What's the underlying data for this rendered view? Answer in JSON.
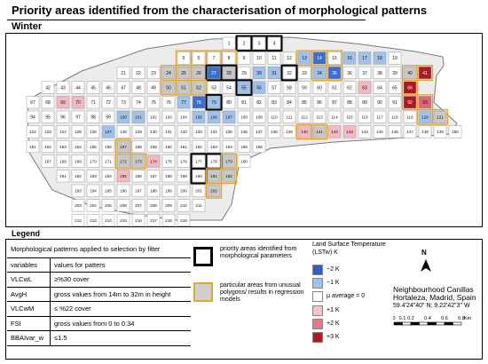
{
  "title": "Priority areas identified from the characterisation of morphological patterns",
  "season": "Winter",
  "map": {
    "colors": {
      "minus2": "#3a6fd0",
      "minus1": "#9ec2ec",
      "avg": "#ffffff",
      "plus1": "#f4b8c0",
      "plus2": "#df6574",
      "plus3": "#b0171f",
      "nodata": "#c8c8c8",
      "block": "#d8d8d8"
    }
  },
  "legend": {
    "title": "Legend",
    "criteria_heading": "Morphological patterns applied to selection by filter",
    "col_variables": "variables",
    "col_values": "values for patters",
    "rows": [
      {
        "var": "VLCwL",
        "val": "≥%30 cover"
      },
      {
        "var": "AvgH",
        "val": "gross values from 14m to 32m in height"
      },
      {
        "var": "VLCwM",
        "val": "≤ %22 cover"
      },
      {
        "var": "FSI",
        "val": "gross values from 0 to 0.34"
      },
      {
        "var": "BBAIvar_w",
        "val": "≤1.5"
      }
    ],
    "priority_label": "priority areas identified from morphological parameters",
    "particular_label": "particular areas from unusual polygons/ results in regression models",
    "lst_title": "Land Surface Temperature (LSTw) K",
    "lst_items": [
      {
        "label": "−2 K",
        "color": "#2f5fc4"
      },
      {
        "label": "−1 K",
        "color": "#9ec2ec"
      },
      {
        "label": "μ average = 0",
        "color": "#ffffff"
      },
      {
        "label": "+1 K",
        "color": "#f4c4ca"
      },
      {
        "label": "+2 K",
        "color": "#e07a86"
      },
      {
        "label": "+3 K",
        "color": "#b0171f"
      }
    ],
    "north": "N",
    "neighbourhood": "Neighbourhood Canillas",
    "location": "Hortaleza, Madrid, Spain",
    "coords": "59.4'24\"40\" N; 9.22'42\"3\" W",
    "scale_ticks": [
      "0",
      "0.1",
      "0.2",
      "",
      "0.4",
      "",
      "0.6",
      "",
      "0.8"
    ],
    "scale_unit": "Km"
  },
  "cells": [
    {
      "id": "1",
      "r": 0,
      "c": 14,
      "v": "w"
    },
    {
      "id": "2",
      "r": 0,
      "c": 15,
      "v": "w",
      "p": 1
    },
    {
      "id": "3",
      "r": 0,
      "c": 16,
      "v": "w",
      "p": 1
    },
    {
      "id": "4",
      "r": 0,
      "c": 17,
      "v": "w",
      "p": 1
    },
    {
      "id": "5",
      "r": 1,
      "c": 11,
      "v": "w",
      "q": 1
    },
    {
      "id": "6",
      "r": 1,
      "c": 12,
      "v": "w",
      "q": 1
    },
    {
      "id": "7",
      "r": 1,
      "c": 13,
      "v": "w",
      "q": 1
    },
    {
      "id": "8",
      "r": 1,
      "c": 14,
      "v": "w",
      "q": 1
    },
    {
      "id": "9",
      "r": 1,
      "c": 15,
      "v": "w"
    },
    {
      "id": "10",
      "r": 1,
      "c": 16,
      "v": "w"
    },
    {
      "id": "11",
      "r": 1,
      "c": 17,
      "v": "w"
    },
    {
      "id": "12",
      "r": 1,
      "c": 18,
      "v": "w"
    },
    {
      "id": "13",
      "r": 1,
      "c": 19,
      "v": "m1",
      "q": 1
    },
    {
      "id": "14",
      "r": 1,
      "c": 20,
      "v": "m2",
      "q": 1
    },
    {
      "id": "15",
      "r": 1,
      "c": 21,
      "v": "w",
      "q": 1
    },
    {
      "id": "16",
      "r": 1,
      "c": 22,
      "v": "m1"
    },
    {
      "id": "17",
      "r": 1,
      "c": 23,
      "v": "m1"
    },
    {
      "id": "18",
      "r": 1,
      "c": 24,
      "v": "m1"
    },
    {
      "id": "19",
      "r": 1,
      "c": 25,
      "v": "w"
    },
    {
      "id": "21",
      "r": 2,
      "c": 7,
      "v": "w"
    },
    {
      "id": "22",
      "r": 2,
      "c": 8,
      "v": "w"
    },
    {
      "id": "23",
      "r": 2,
      "c": 9,
      "v": "w"
    },
    {
      "id": "24",
      "r": 2,
      "c": 10,
      "v": "nd",
      "q": 1
    },
    {
      "id": "25",
      "r": 2,
      "c": 11,
      "v": "nd",
      "q": 1
    },
    {
      "id": "26",
      "r": 2,
      "c": 12,
      "v": "nd",
      "q": 1
    },
    {
      "id": "27",
      "r": 2,
      "c": 13,
      "v": "m2",
      "p": 1
    },
    {
      "id": "28",
      "r": 2,
      "c": 14,
      "v": "nd",
      "p": 1
    },
    {
      "id": "29",
      "r": 2,
      "c": 15,
      "v": "w"
    },
    {
      "id": "30",
      "r": 2,
      "c": 16,
      "v": "m1"
    },
    {
      "id": "31",
      "r": 2,
      "c": 17,
      "v": "m1"
    },
    {
      "id": "32",
      "r": 2,
      "c": 18,
      "v": "w",
      "p": 1
    },
    {
      "id": "33",
      "r": 2,
      "c": 19,
      "v": "w"
    },
    {
      "id": "34",
      "r": 2,
      "c": 20,
      "v": "m1",
      "q": 1
    },
    {
      "id": "35",
      "r": 2,
      "c": 21,
      "v": "m2",
      "q": 1
    },
    {
      "id": "36",
      "r": 2,
      "c": 22,
      "v": "w"
    },
    {
      "id": "37",
      "r": 2,
      "c": 23,
      "v": "w"
    },
    {
      "id": "38",
      "r": 2,
      "c": 24,
      "v": "w"
    },
    {
      "id": "39",
      "r": 2,
      "c": 25,
      "v": "w"
    },
    {
      "id": "40",
      "r": 2,
      "c": 26,
      "v": "nd",
      "q": 1
    },
    {
      "id": "41",
      "r": 2,
      "c": 27,
      "v": "p3",
      "q": 1
    },
    {
      "id": "42",
      "r": 3,
      "c": 2,
      "v": "w"
    },
    {
      "id": "43",
      "r": 3,
      "c": 3,
      "v": "w"
    },
    {
      "id": "44",
      "r": 3,
      "c": 4,
      "v": "w"
    },
    {
      "id": "45",
      "r": 3,
      "c": 5,
      "v": "w"
    },
    {
      "id": "46",
      "r": 3,
      "c": 6,
      "v": "w"
    },
    {
      "id": "47",
      "r": 3,
      "c": 7,
      "v": "w"
    },
    {
      "id": "48",
      "r": 3,
      "c": 8,
      "v": "w"
    },
    {
      "id": "49",
      "r": 3,
      "c": 9,
      "v": "w"
    },
    {
      "id": "50",
      "r": 3,
      "c": 10,
      "v": "nd",
      "q": 1
    },
    {
      "id": "51",
      "r": 3,
      "c": 11,
      "v": "nd",
      "q": 1
    },
    {
      "id": "52",
      "r": 3,
      "c": 12,
      "v": "nd",
      "q": 1
    },
    {
      "id": "53",
      "r": 3,
      "c": 13,
      "v": "w"
    },
    {
      "id": "54",
      "r": 3,
      "c": 14,
      "v": "w"
    },
    {
      "id": "55",
      "r": 3,
      "c": 15,
      "v": "m1",
      "p": 1
    },
    {
      "id": "56",
      "r": 3,
      "c": 16,
      "v": "m1"
    },
    {
      "id": "57",
      "r": 3,
      "c": 17,
      "v": "w"
    },
    {
      "id": "58",
      "r": 3,
      "c": 18,
      "v": "w"
    },
    {
      "id": "59",
      "r": 3,
      "c": 19,
      "v": "w"
    },
    {
      "id": "60",
      "r": 3,
      "c": 20,
      "v": "w"
    },
    {
      "id": "61",
      "r": 3,
      "c": 21,
      "v": "w"
    },
    {
      "id": "62",
      "r": 3,
      "c": 22,
      "v": "w"
    },
    {
      "id": "63",
      "r": 3,
      "c": 23,
      "v": "p1"
    },
    {
      "id": "64",
      "r": 3,
      "c": 24,
      "v": "w"
    },
    {
      "id": "65",
      "r": 3,
      "c": 25,
      "v": "w"
    },
    {
      "id": "66",
      "r": 3,
      "c": 26,
      "v": "p3",
      "q": 1
    },
    {
      "id": "67",
      "r": 4,
      "c": 1,
      "v": "w"
    },
    {
      "id": "68",
      "r": 4,
      "c": 2,
      "v": "w"
    },
    {
      "id": "69",
      "r": 4,
      "c": 3,
      "v": "p1"
    },
    {
      "id": "70",
      "r": 4,
      "c": 4,
      "v": "p1"
    },
    {
      "id": "71",
      "r": 4,
      "c": 5,
      "v": "w"
    },
    {
      "id": "72",
      "r": 4,
      "c": 6,
      "v": "w"
    },
    {
      "id": "73",
      "r": 4,
      "c": 7,
      "v": "w"
    },
    {
      "id": "74",
      "r": 4,
      "c": 8,
      "v": "w"
    },
    {
      "id": "75",
      "r": 4,
      "c": 9,
      "v": "w"
    },
    {
      "id": "76",
      "r": 4,
      "c": 10,
      "v": "w"
    },
    {
      "id": "77",
      "r": 4,
      "c": 11,
      "v": "m1"
    },
    {
      "id": "78",
      "r": 4,
      "c": 12,
      "v": "m2"
    },
    {
      "id": "79",
      "r": 4,
      "c": 13,
      "v": "m1",
      "p": 1
    },
    {
      "id": "80",
      "r": 4,
      "c": 14,
      "v": "w"
    },
    {
      "id": "81",
      "r": 4,
      "c": 15,
      "v": "w"
    },
    {
      "id": "82",
      "r": 4,
      "c": 16,
      "v": "w"
    },
    {
      "id": "83",
      "r": 4,
      "c": 17,
      "v": "w"
    },
    {
      "id": "84",
      "r": 4,
      "c": 18,
      "v": "w"
    },
    {
      "id": "85",
      "r": 4,
      "c": 19,
      "v": "w"
    },
    {
      "id": "86",
      "r": 4,
      "c": 20,
      "v": "w"
    },
    {
      "id": "87",
      "r": 4,
      "c": 21,
      "v": "w"
    },
    {
      "id": "88",
      "r": 4,
      "c": 22,
      "v": "w"
    },
    {
      "id": "89",
      "r": 4,
      "c": 23,
      "v": "w"
    },
    {
      "id": "90",
      "r": 4,
      "c": 24,
      "v": "w"
    },
    {
      "id": "91",
      "r": 4,
      "c": 25,
      "v": "w"
    },
    {
      "id": "92",
      "r": 4,
      "c": 26,
      "v": "p3",
      "q": 1
    },
    {
      "id": "93",
      "r": 4,
      "c": 27,
      "v": "p2",
      "q": 1
    },
    {
      "id": "94",
      "r": 5,
      "c": 1,
      "v": "w"
    },
    {
      "id": "95",
      "r": 5,
      "c": 2,
      "v": "w"
    },
    {
      "id": "96",
      "r": 5,
      "c": 3,
      "v": "w"
    },
    {
      "id": "97",
      "r": 5,
      "c": 4,
      "v": "w"
    },
    {
      "id": "98",
      "r": 5,
      "c": 5,
      "v": "w"
    },
    {
      "id": "99",
      "r": 5,
      "c": 6,
      "v": "w"
    },
    {
      "id": "100",
      "r": 5,
      "c": 7,
      "v": "m1"
    },
    {
      "id": "101",
      "r": 5,
      "c": 8,
      "v": "m1"
    },
    {
      "id": "102",
      "r": 5,
      "c": 9,
      "v": "w"
    },
    {
      "id": "103",
      "r": 5,
      "c": 10,
      "v": "w"
    },
    {
      "id": "104",
      "r": 5,
      "c": 11,
      "v": "w"
    },
    {
      "id": "105",
      "r": 5,
      "c": 12,
      "v": "m1"
    },
    {
      "id": "106",
      "r": 5,
      "c": 13,
      "v": "m1"
    },
    {
      "id": "107",
      "r": 5,
      "c": 14,
      "v": "m1"
    },
    {
      "id": "108",
      "r": 5,
      "c": 15,
      "v": "w"
    },
    {
      "id": "109",
      "r": 5,
      "c": 16,
      "v": "w"
    },
    {
      "id": "110",
      "r": 5,
      "c": 17,
      "v": "w"
    },
    {
      "id": "111",
      "r": 5,
      "c": 18,
      "v": "w"
    },
    {
      "id": "112",
      "r": 5,
      "c": 19,
      "v": "w"
    },
    {
      "id": "113",
      "r": 5,
      "c": 20,
      "v": "w"
    },
    {
      "id": "114",
      "r": 5,
      "c": 21,
      "v": "w"
    },
    {
      "id": "115",
      "r": 5,
      "c": 22,
      "v": "w"
    },
    {
      "id": "116",
      "r": 5,
      "c": 23,
      "v": "w"
    },
    {
      "id": "117",
      "r": 5,
      "c": 24,
      "v": "w"
    },
    {
      "id": "118",
      "r": 5,
      "c": 25,
      "v": "w"
    },
    {
      "id": "119",
      "r": 5,
      "c": 26,
      "v": "w"
    },
    {
      "id": "120",
      "r": 5,
      "c": 27,
      "v": "m1",
      "q": 1
    },
    {
      "id": "121",
      "r": 5,
      "c": 28,
      "v": "nd",
      "q": 1
    },
    {
      "id": "122",
      "r": 6,
      "c": 1,
      "v": "w"
    },
    {
      "id": "123",
      "r": 6,
      "c": 2,
      "v": "w"
    },
    {
      "id": "124",
      "r": 6,
      "c": 3,
      "v": "w"
    },
    {
      "id": "125",
      "r": 6,
      "c": 4,
      "v": "w"
    },
    {
      "id": "126",
      "r": 6,
      "c": 5,
      "v": "w"
    },
    {
      "id": "127",
      "r": 6,
      "c": 6,
      "v": "m1"
    },
    {
      "id": "128",
      "r": 6,
      "c": 7,
      "v": "w"
    },
    {
      "id": "129",
      "r": 6,
      "c": 8,
      "v": "w"
    },
    {
      "id": "130",
      "r": 6,
      "c": 9,
      "v": "w"
    },
    {
      "id": "131",
      "r": 6,
      "c": 10,
      "v": "w"
    },
    {
      "id": "132",
      "r": 6,
      "c": 11,
      "v": "w"
    },
    {
      "id": "133",
      "r": 6,
      "c": 12,
      "v": "w"
    },
    {
      "id": "134",
      "r": 6,
      "c": 13,
      "v": "w"
    },
    {
      "id": "135",
      "r": 6,
      "c": 14,
      "v": "w"
    },
    {
      "id": "136",
      "r": 6,
      "c": 15,
      "v": "w"
    },
    {
      "id": "137",
      "r": 6,
      "c": 16,
      "v": "w"
    },
    {
      "id": "138",
      "r": 6,
      "c": 17,
      "v": "w"
    },
    {
      "id": "139",
      "r": 6,
      "c": 18,
      "v": "w"
    },
    {
      "id": "140",
      "r": 6,
      "c": 19,
      "v": "p1",
      "q": 1
    },
    {
      "id": "141",
      "r": 6,
      "c": 20,
      "v": "nd",
      "q": 1
    },
    {
      "id": "142",
      "r": 6,
      "c": 21,
      "v": "p1"
    },
    {
      "id": "143",
      "r": 6,
      "c": 22,
      "v": "p1"
    },
    {
      "id": "144",
      "r": 6,
      "c": 23,
      "v": "w"
    },
    {
      "id": "145",
      "r": 6,
      "c": 24,
      "v": "w"
    },
    {
      "id": "146",
      "r": 6,
      "c": 25,
      "v": "w"
    },
    {
      "id": "147",
      "r": 6,
      "c": 26,
      "v": "w"
    },
    {
      "id": "148",
      "r": 6,
      "c": 27,
      "v": "w"
    },
    {
      "id": "149",
      "r": 6,
      "c": 28,
      "v": "w"
    },
    {
      "id": "150",
      "r": 6,
      "c": 29,
      "v": "w"
    },
    {
      "id": "151",
      "r": 7,
      "c": 1,
      "v": "w"
    },
    {
      "id": "152",
      "r": 7,
      "c": 2,
      "v": "w"
    },
    {
      "id": "153",
      "r": 7,
      "c": 3,
      "v": "w"
    },
    {
      "id": "154",
      "r": 7,
      "c": 4,
      "v": "w"
    },
    {
      "id": "155",
      "r": 7,
      "c": 5,
      "v": "w"
    },
    {
      "id": "156",
      "r": 7,
      "c": 6,
      "v": "w"
    },
    {
      "id": "157",
      "r": 7,
      "c": 7,
      "v": "nd",
      "q": 1
    },
    {
      "id": "158",
      "r": 7,
      "c": 8,
      "v": "w"
    },
    {
      "id": "159",
      "r": 7,
      "c": 9,
      "v": "w"
    },
    {
      "id": "160",
      "r": 7,
      "c": 10,
      "v": "w"
    },
    {
      "id": "161",
      "r": 7,
      "c": 11,
      "v": "w"
    },
    {
      "id": "162",
      "r": 7,
      "c": 12,
      "v": "w"
    },
    {
      "id": "163",
      "r": 7,
      "c": 13,
      "v": "w"
    },
    {
      "id": "164",
      "r": 7,
      "c": 14,
      "v": "w"
    },
    {
      "id": "165",
      "r": 7,
      "c": 15,
      "v": "w"
    },
    {
      "id": "166",
      "r": 7,
      "c": 16,
      "v": "w"
    },
    {
      "id": "167",
      "r": 8,
      "c": 2,
      "v": "w"
    },
    {
      "id": "168",
      "r": 8,
      "c": 3,
      "v": "w"
    },
    {
      "id": "169",
      "r": 8,
      "c": 4,
      "v": "w"
    },
    {
      "id": "170",
      "r": 8,
      "c": 5,
      "v": "w"
    },
    {
      "id": "171",
      "r": 8,
      "c": 6,
      "v": "w"
    },
    {
      "id": "172",
      "r": 8,
      "c": 7,
      "v": "nd",
      "q": 1
    },
    {
      "id": "173",
      "r": 8,
      "c": 8,
      "v": "nd",
      "q": 1
    },
    {
      "id": "174",
      "r": 8,
      "c": 9,
      "v": "p1"
    },
    {
      "id": "175",
      "r": 8,
      "c": 10,
      "v": "w"
    },
    {
      "id": "176",
      "r": 8,
      "c": 11,
      "v": "w"
    },
    {
      "id": "177",
      "r": 8,
      "c": 12,
      "v": "w",
      "p": 1
    },
    {
      "id": "178",
      "r": 8,
      "c": 13,
      "v": "w",
      "p": 1
    },
    {
      "id": "179",
      "r": 8,
      "c": 14,
      "v": "nd",
      "q": 1
    },
    {
      "id": "180",
      "r": 8,
      "c": 15,
      "v": "w"
    },
    {
      "id": "181",
      "r": 9,
      "c": 3,
      "v": "w"
    },
    {
      "id": "182",
      "r": 9,
      "c": 4,
      "v": "w"
    },
    {
      "id": "183",
      "r": 9,
      "c": 5,
      "v": "w"
    },
    {
      "id": "184",
      "r": 9,
      "c": 6,
      "v": "w"
    },
    {
      "id": "185",
      "r": 9,
      "c": 7,
      "v": "p1"
    },
    {
      "id": "186",
      "r": 9,
      "c": 8,
      "v": "w"
    },
    {
      "id": "187",
      "r": 9,
      "c": 9,
      "v": "w"
    },
    {
      "id": "188",
      "r": 9,
      "c": 10,
      "v": "w"
    },
    {
      "id": "189",
      "r": 9,
      "c": 11,
      "v": "w"
    },
    {
      "id": "190",
      "r": 9,
      "c": 12,
      "v": "w",
      "p": 1
    },
    {
      "id": "191",
      "r": 9,
      "c": 13,
      "v": "nd",
      "q": 1
    },
    {
      "id": "192",
      "r": 9,
      "c": 14,
      "v": "nd",
      "q": 1
    },
    {
      "id": "193",
      "r": 10,
      "c": 4,
      "v": "w"
    },
    {
      "id": "194",
      "r": 10,
      "c": 5,
      "v": "w"
    },
    {
      "id": "195",
      "r": 10,
      "c": 6,
      "v": "w"
    },
    {
      "id": "196",
      "r": 10,
      "c": 7,
      "v": "w"
    },
    {
      "id": "197",
      "r": 10,
      "c": 8,
      "v": "w"
    },
    {
      "id": "198",
      "r": 10,
      "c": 9,
      "v": "w"
    },
    {
      "id": "199",
      "r": 10,
      "c": 10,
      "v": "w"
    },
    {
      "id": "200",
      "r": 10,
      "c": 11,
      "v": "w"
    },
    {
      "id": "201",
      "r": 10,
      "c": 12,
      "v": "w"
    },
    {
      "id": "202",
      "r": 10,
      "c": 13,
      "v": "nd",
      "q": 1
    },
    {
      "id": "203",
      "r": 11,
      "c": 4,
      "v": "w"
    },
    {
      "id": "204",
      "r": 11,
      "c": 5,
      "v": "w"
    },
    {
      "id": "205",
      "r": 11,
      "c": 6,
      "v": "w"
    },
    {
      "id": "206",
      "r": 11,
      "c": 7,
      "v": "w"
    },
    {
      "id": "207",
      "r": 11,
      "c": 8,
      "v": "w"
    },
    {
      "id": "208",
      "r": 11,
      "c": 9,
      "v": "w"
    },
    {
      "id": "209",
      "r": 11,
      "c": 10,
      "v": "w"
    },
    {
      "id": "210",
      "r": 11,
      "c": 11,
      "v": "w"
    },
    {
      "id": "211",
      "r": 11,
      "c": 12,
      "v": "w"
    },
    {
      "id": "212",
      "r": 12,
      "c": 4,
      "v": "w"
    },
    {
      "id": "213",
      "r": 12,
      "c": 5,
      "v": "w"
    },
    {
      "id": "214",
      "r": 12,
      "c": 6,
      "v": "w"
    },
    {
      "id": "215",
      "r": 12,
      "c": 7,
      "v": "w"
    },
    {
      "id": "216",
      "r": 12,
      "c": 8,
      "v": "w"
    },
    {
      "id": "217",
      "r": 12,
      "c": 9,
      "v": "w"
    },
    {
      "id": "218",
      "r": 12,
      "c": 10,
      "v": "w"
    },
    {
      "id": "219",
      "r": 12,
      "c": 11,
      "v": "w"
    }
  ]
}
